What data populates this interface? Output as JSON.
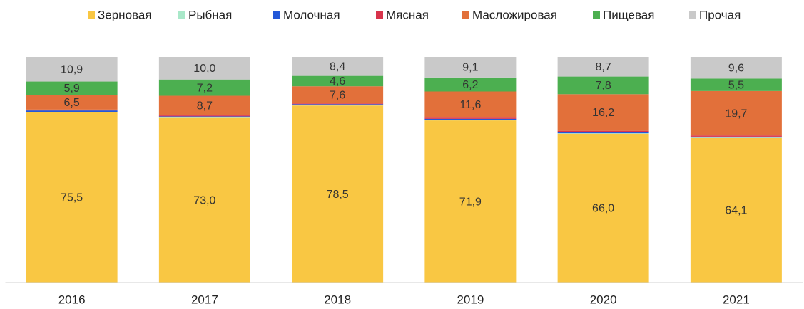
{
  "chart_data": {
    "type": "stacked_bar",
    "categories": [
      "2016",
      "2017",
      "2018",
      "2019",
      "2020",
      "2021"
    ],
    "ylim": [
      0,
      100
    ],
    "series": [
      {
        "name": "Зерновая",
        "color": "#f9c743",
        "values": [
          75.5,
          73.0,
          78.5,
          71.9,
          66.0,
          64.1
        ],
        "value_labels": [
          "75,5",
          "73,0",
          "78,5",
          "71,9",
          "66,0",
          "64,1"
        ]
      },
      {
        "name": "Рыбная",
        "color": "#a9e8c9",
        "values": [
          0.2,
          0.2,
          0.2,
          0.2,
          0.2,
          0.2
        ]
      },
      {
        "name": "Молочная",
        "color": "#2358d8",
        "values": [
          0.6,
          0.5,
          0.4,
          0.5,
          0.5,
          0.4
        ]
      },
      {
        "name": "Мясная",
        "color": "#d8334b",
        "values": [
          0.4,
          0.4,
          0.3,
          0.5,
          0.6,
          0.5
        ]
      },
      {
        "name": "Масложировая",
        "color": "#e2703a",
        "values": [
          6.5,
          8.7,
          7.6,
          11.6,
          16.2,
          19.7
        ],
        "value_labels": [
          "6,5",
          "8,7",
          "7,6",
          "11,6",
          "16,2",
          "19,7"
        ]
      },
      {
        "name": "Пищевая",
        "color": "#4caf50",
        "values": [
          5.9,
          7.2,
          4.6,
          6.2,
          7.8,
          5.5
        ],
        "value_labels": [
          "5,9",
          "7,2",
          "4,6",
          "6,2",
          "7,8",
          "5,5"
        ]
      },
      {
        "name": "Прочая",
        "color": "#c9c9c9",
        "values": [
          10.9,
          10.0,
          8.4,
          9.1,
          8.7,
          9.6
        ],
        "value_labels": [
          "10,9",
          "10,0",
          "8,4",
          "9,1",
          "8,7",
          "9,6"
        ]
      }
    ]
  }
}
